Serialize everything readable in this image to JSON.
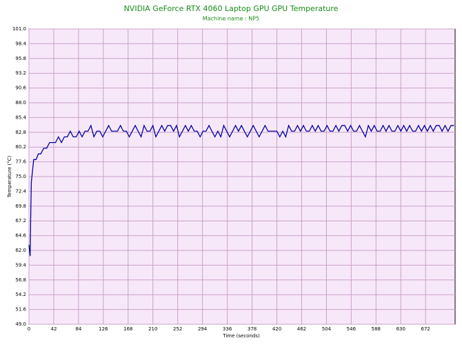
{
  "chart_data": {
    "type": "line",
    "title": "NVIDIA GeForce RTX 4060 Laptop GPU GPU Temperature",
    "subtitle": "Machine name : NP5",
    "x_label": "Time (seconds)",
    "y_label": "Temperature (°C)",
    "x": [
      0,
      1,
      2,
      3,
      4,
      6,
      8,
      12,
      16,
      20,
      25,
      30,
      35,
      40,
      45,
      50,
      55,
      60,
      65,
      70,
      75,
      80,
      85,
      90,
      95,
      100,
      105,
      110,
      115,
      120,
      125,
      130,
      135,
      140,
      145,
      150,
      155,
      160,
      165,
      170,
      175,
      180,
      185,
      190,
      195,
      200,
      205,
      210,
      215,
      220,
      225,
      230,
      235,
      240,
      245,
      250,
      255,
      260,
      265,
      270,
      275,
      280,
      285,
      290,
      295,
      300,
      305,
      310,
      315,
      320,
      325,
      330,
      335,
      340,
      345,
      350,
      355,
      360,
      365,
      370,
      375,
      380,
      385,
      390,
      395,
      400,
      405,
      410,
      415,
      420,
      425,
      430,
      435,
      440,
      445,
      450,
      455,
      460,
      465,
      470,
      475,
      480,
      485,
      490,
      495,
      500,
      505,
      510,
      515,
      520,
      525,
      530,
      535,
      540,
      545,
      550,
      555,
      560,
      565,
      570,
      575,
      580,
      585,
      590,
      595,
      600,
      605,
      610,
      615,
      620,
      625,
      630,
      635,
      640,
      645,
      650,
      655,
      660,
      665,
      670,
      675,
      680,
      685,
      690,
      695,
      700,
      705,
      710,
      715,
      720
    ],
    "series": [
      {
        "name": "GPU Temperature",
        "color": "#0000a0",
        "values": [
          63,
          62,
          61,
          68,
          74,
          76,
          78,
          78,
          79,
          79,
          80,
          80,
          81,
          81,
          81,
          82,
          81,
          82,
          82,
          83,
          82,
          82,
          83,
          82,
          83,
          83,
          84,
          82,
          83,
          83,
          82,
          83,
          84,
          83,
          83,
          83,
          84,
          83,
          83,
          82,
          83,
          84,
          83,
          82,
          84,
          83,
          83,
          84,
          82,
          83,
          84,
          83,
          84,
          84,
          83,
          84,
          82,
          83,
          84,
          83,
          84,
          83,
          83,
          82,
          83,
          83,
          84,
          83,
          82,
          83,
          82,
          84,
          83,
          82,
          83,
          84,
          83,
          84,
          83,
          82,
          83,
          84,
          83,
          82,
          83,
          84,
          83,
          83,
          83,
          83,
          82,
          83,
          82,
          84,
          83,
          83,
          84,
          83,
          84,
          83,
          83,
          84,
          83,
          84,
          83,
          83,
          84,
          83,
          83,
          84,
          83,
          84,
          84,
          83,
          84,
          83,
          83,
          84,
          83,
          82,
          84,
          83,
          84,
          83,
          83,
          84,
          83,
          84,
          83,
          83,
          84,
          83,
          84,
          83,
          84,
          83,
          83,
          84,
          83,
          84,
          83,
          84,
          83,
          84,
          84,
          83,
          84,
          83,
          84,
          84
        ]
      }
    ],
    "xlim": [
      0,
      722
    ],
    "ylim": [
      49,
      101
    ],
    "xticks": [
      0,
      42,
      84,
      126,
      168,
      210,
      252,
      294,
      336,
      378,
      420,
      462,
      504,
      546,
      588,
      630,
      672
    ],
    "yticks": [
      {
        "value": 49,
        "label": "49.0"
      },
      51.6,
      54.2,
      56.8,
      59.4,
      {
        "value": 62,
        "label": "62.0"
      },
      64.6,
      67.2,
      69.8,
      72.4,
      {
        "value": 75,
        "label": "75.0"
      },
      77.6,
      80.2,
      82.8,
      85.4,
      {
        "value": 88,
        "label": "88.0"
      },
      90.6,
      93.2,
      95.8,
      98.4,
      {
        "value": 101,
        "label": "101.0"
      }
    ],
    "grid": true
  }
}
